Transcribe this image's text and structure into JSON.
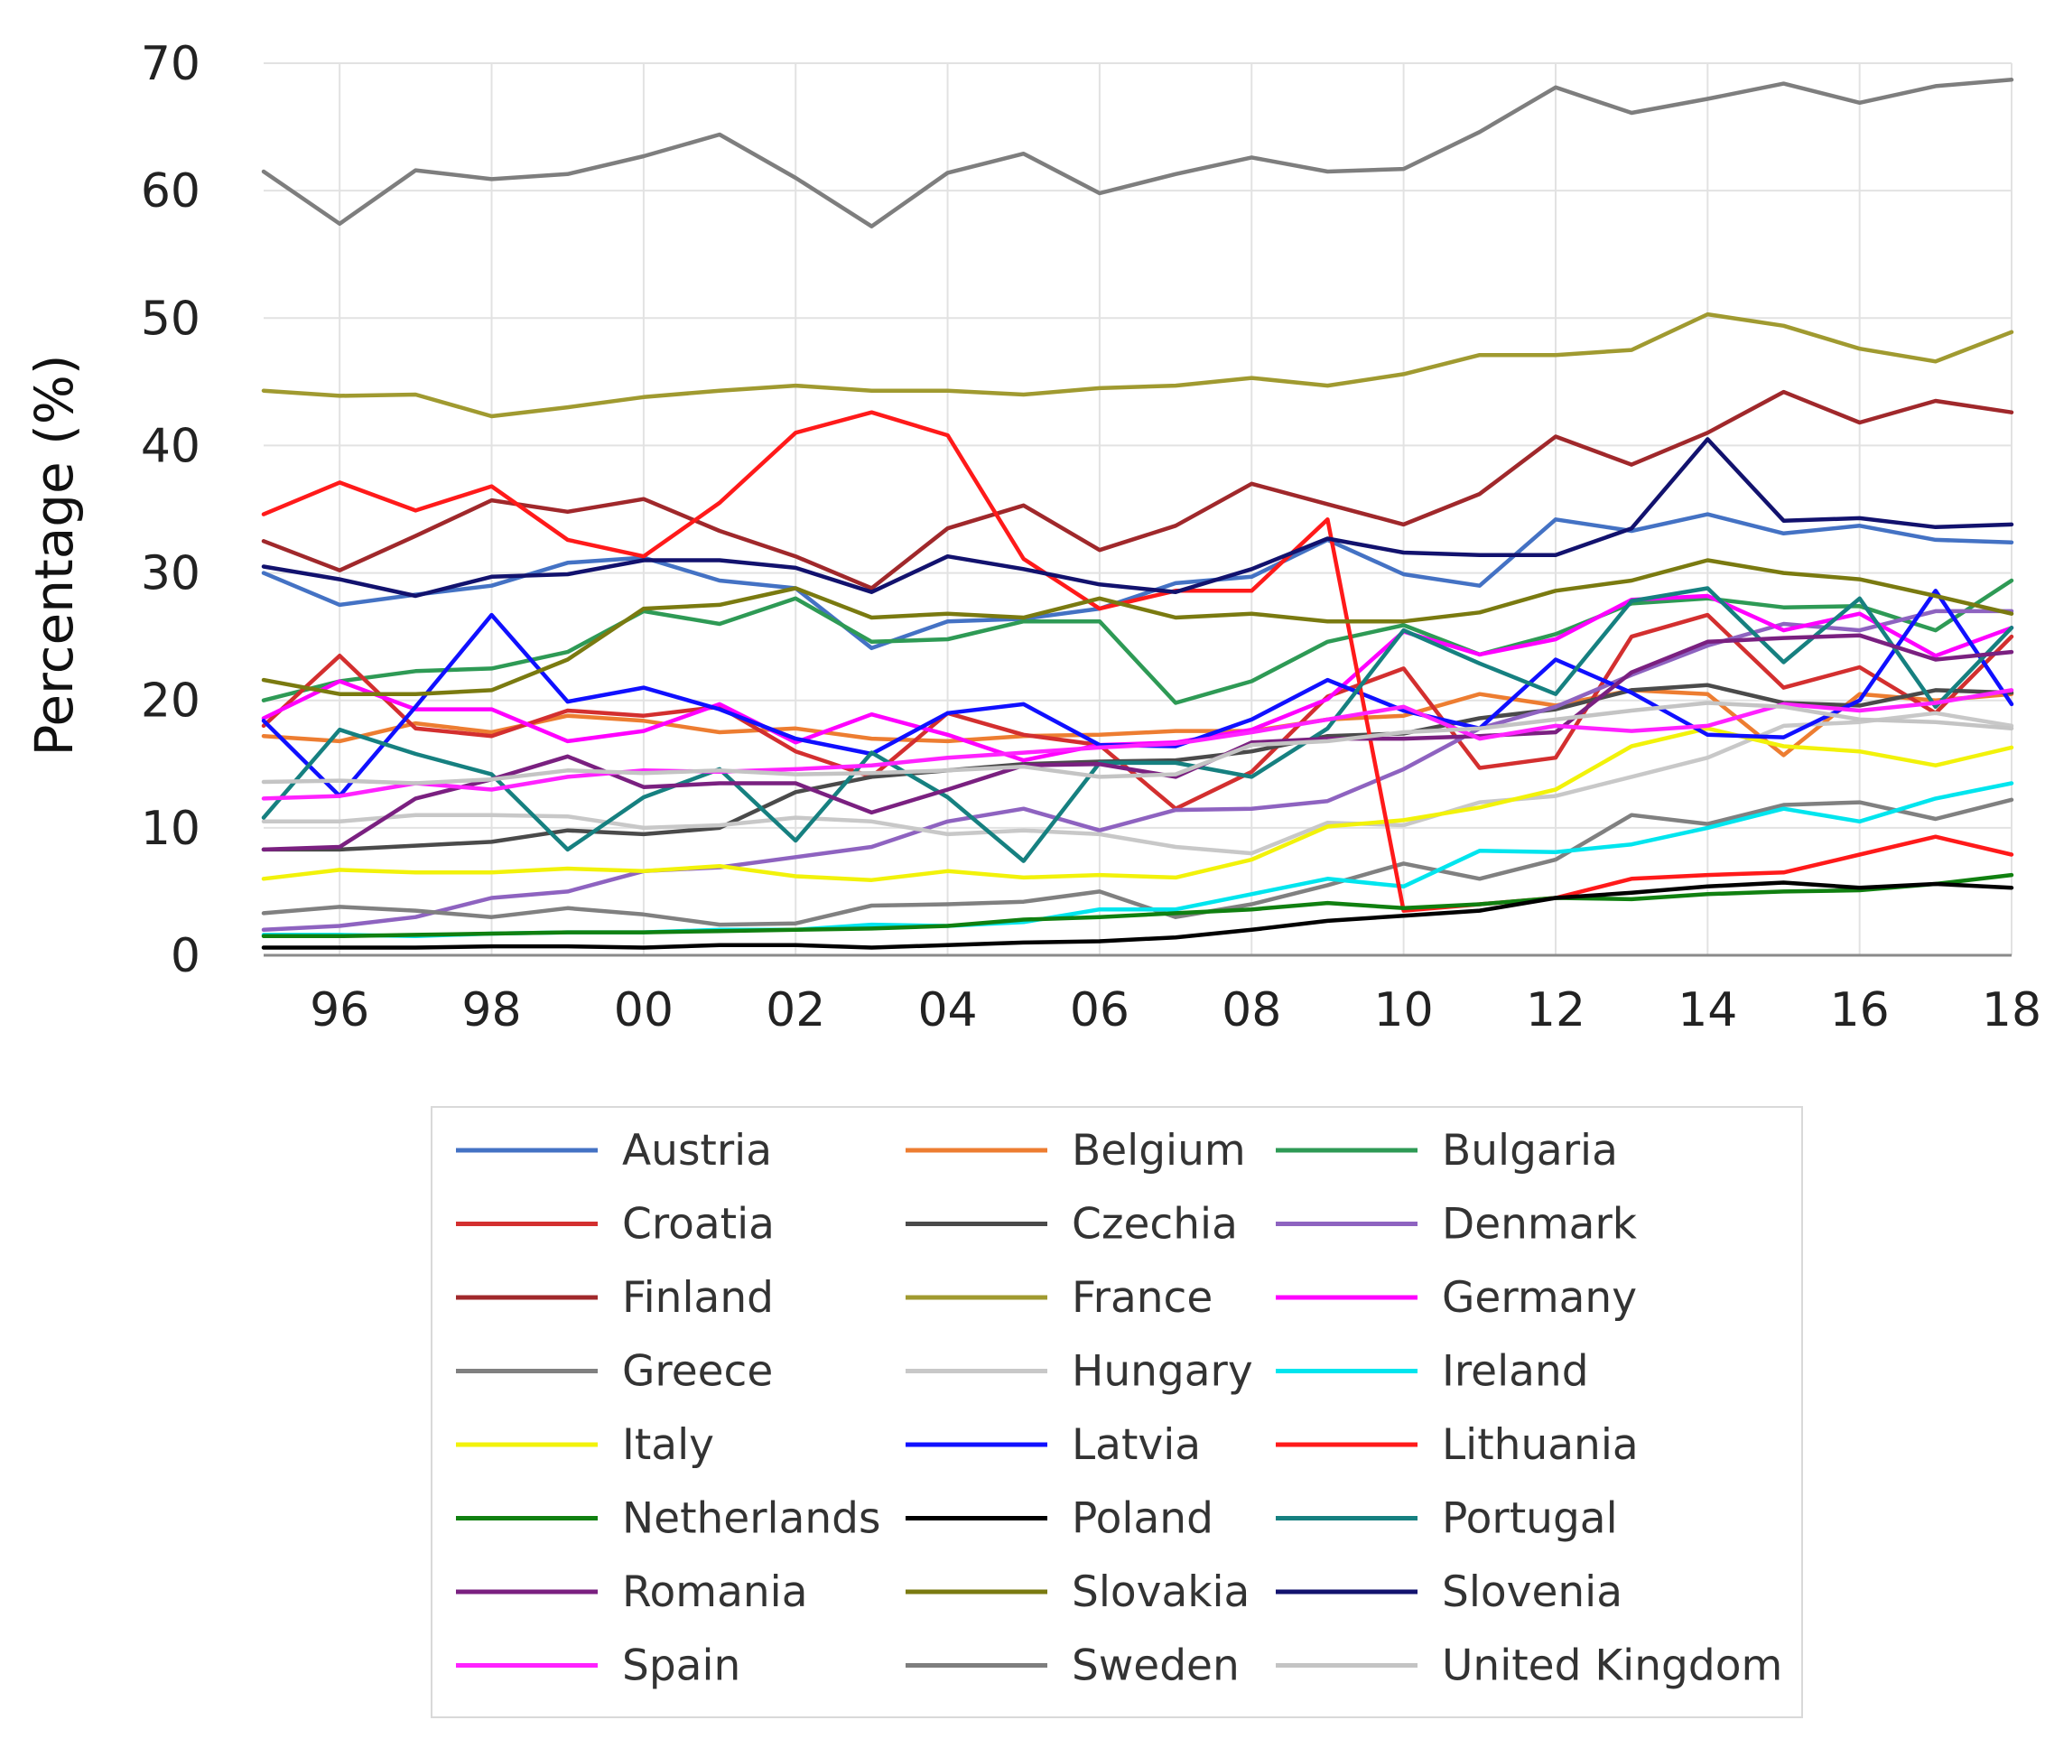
{
  "chart_data": {
    "type": "line",
    "title": "",
    "xlabel": "",
    "ylabel": "Percentage (%)",
    "x": [
      1995,
      1996,
      1997,
      1998,
      1999,
      2000,
      2001,
      2002,
      2003,
      2004,
      2005,
      2006,
      2007,
      2008,
      2009,
      2010,
      2011,
      2012,
      2013,
      2014,
      2015,
      2016,
      2017,
      2018
    ],
    "xticks": [
      {
        "value": 1996,
        "label": "96"
      },
      {
        "value": 1998,
        "label": "98"
      },
      {
        "value": 2000,
        "label": "00"
      },
      {
        "value": 2002,
        "label": "02"
      },
      {
        "value": 2004,
        "label": "04"
      },
      {
        "value": 2006,
        "label": "06"
      },
      {
        "value": 2008,
        "label": "08"
      },
      {
        "value": 2010,
        "label": "10"
      },
      {
        "value": 2012,
        "label": "12"
      },
      {
        "value": 2014,
        "label": "14"
      },
      {
        "value": 2016,
        "label": "16"
      },
      {
        "value": 2018,
        "label": "18"
      }
    ],
    "yticks": [
      0,
      10,
      20,
      30,
      40,
      50,
      60,
      70
    ],
    "xlim": [
      1995,
      2018
    ],
    "ylim": [
      0,
      70
    ],
    "grid": true,
    "legend_position": "bottom",
    "series": [
      {
        "name": "Austria",
        "color": "#4472c4",
        "values": [
          30,
          27.5,
          28.3,
          29,
          30.8,
          31.2,
          29.4,
          28.8,
          24.1,
          26.2,
          26.4,
          27.2,
          29.2,
          29.7,
          32.6,
          29.9,
          29,
          34.2,
          33.3,
          34.6,
          33.1,
          33.7,
          32.6,
          32.4
        ]
      },
      {
        "name": "Belgium",
        "color": "#ed7d31",
        "values": [
          17.2,
          16.8,
          18.2,
          17.5,
          18.8,
          18.4,
          17.5,
          17.8,
          17,
          16.8,
          17.2,
          17.3,
          17.6,
          17.6,
          18.5,
          18.8,
          20.5,
          19.6,
          20.8,
          20.5,
          15.7,
          20.5,
          20,
          20.5
        ]
      },
      {
        "name": "Bulgaria",
        "color": "#2e9a55",
        "values": [
          20,
          21.5,
          22.3,
          22.5,
          23.8,
          27,
          26,
          28,
          24.6,
          24.8,
          26.2,
          26.2,
          19.8,
          21.5,
          24.6,
          25.9,
          23.6,
          25.2,
          27.6,
          28,
          27.3,
          27.4,
          25.5,
          29.4
        ]
      },
      {
        "name": "Croatia",
        "color": "#d32f2f",
        "values": [
          18,
          23.5,
          17.8,
          17.2,
          19.2,
          18.8,
          19.5,
          16,
          14,
          19,
          17.3,
          16.5,
          11.5,
          14.4,
          20.3,
          22.5,
          14.7,
          15.5,
          25,
          26.7,
          21,
          22.6,
          19,
          25
        ]
      },
      {
        "name": "Czechia",
        "color": "#4a4a4a",
        "values": [
          8.3,
          8.3,
          8.6,
          8.9,
          9.8,
          9.5,
          10,
          12.8,
          14,
          14.5,
          15,
          15.2,
          15.3,
          16,
          17.2,
          17.4,
          18.6,
          19.3,
          20.8,
          21.2,
          19.8,
          19.6,
          20.8,
          20.6
        ]
      },
      {
        "name": "Denmark",
        "color": "#8e63c0",
        "values": [
          2,
          2.3,
          3,
          4.5,
          5,
          6.6,
          6.9,
          7.7,
          8.5,
          10.5,
          11.5,
          9.8,
          11.4,
          11.5,
          12.1,
          14.6,
          17.8,
          19.5,
          22,
          24.3,
          26,
          25.5,
          27,
          27
        ]
      },
      {
        "name": "Finland",
        "color": "#a0282b",
        "values": [
          32.5,
          30.2,
          32.9,
          35.7,
          34.8,
          35.8,
          33.3,
          31.3,
          28.8,
          33.5,
          35.3,
          31.8,
          33.7,
          37,
          35.4,
          33.8,
          36.2,
          40.7,
          38.5,
          41,
          44.2,
          41.8,
          43.5,
          42.6
        ]
      },
      {
        "name": "France",
        "color": "#a09a30",
        "values": [
          44.3,
          43.9,
          44,
          42.3,
          43,
          43.8,
          44.3,
          44.7,
          44.3,
          44.3,
          44,
          44.5,
          44.7,
          45.3,
          44.7,
          45.6,
          47.1,
          47.1,
          47.5,
          50.3,
          49.4,
          47.6,
          46.6,
          48.9
        ]
      },
      {
        "name": "Germany",
        "color": "#ff00ff",
        "values": [
          18.6,
          21.5,
          19.3,
          19.3,
          16.8,
          17.6,
          19.7,
          16.7,
          18.9,
          17.3,
          15.3,
          16.5,
          16.7,
          17.7,
          20.1,
          25.4,
          23.6,
          24.8,
          27.9,
          28.2,
          25.5,
          26.8,
          23.5,
          25.7
        ]
      },
      {
        "name": "Greece",
        "color": "#808080",
        "values": [
          3.3,
          3.8,
          3.5,
          3,
          3.7,
          3.2,
          2.4,
          2.5,
          3.9,
          4,
          4.2,
          5,
          3,
          4,
          5.5,
          7.2,
          6,
          7.5,
          11,
          10.3,
          11.8,
          12,
          10.7,
          12.2
        ]
      },
      {
        "name": "Hungary",
        "color": "#c8c8c8",
        "values": [
          10.5,
          10.5,
          11,
          11,
          10.9,
          10,
          10.2,
          10.8,
          10.5,
          9.5,
          9.8,
          9.5,
          8.5,
          8,
          10.4,
          10.2,
          12,
          12.5,
          14,
          15.5,
          18,
          18.3,
          19,
          18
        ]
      },
      {
        "name": "Ireland",
        "color": "#00e5ee",
        "values": [
          1.6,
          1.6,
          1.5,
          1.7,
          1.8,
          1.8,
          2,
          2,
          2.4,
          2.3,
          2.6,
          3.6,
          3.6,
          4.8,
          6,
          5.4,
          8.2,
          8.1,
          8.7,
          10,
          11.5,
          10.5,
          12.3,
          13.5
        ]
      },
      {
        "name": "Italy",
        "color": "#f2f20a",
        "values": [
          6,
          6.7,
          6.5,
          6.5,
          6.8,
          6.6,
          7,
          6.2,
          5.9,
          6.6,
          6.1,
          6.3,
          6.1,
          7.5,
          10.1,
          10.6,
          11.6,
          13,
          16.4,
          17.8,
          16.4,
          16,
          14.9,
          16.3
        ]
      },
      {
        "name": "Latvia",
        "color": "#1010ff",
        "values": [
          18.4,
          12.5,
          19.5,
          26.7,
          19.9,
          21,
          19.3,
          17,
          15.8,
          19,
          19.7,
          16.5,
          16.4,
          18.5,
          21.6,
          19.2,
          17.8,
          23.2,
          20.6,
          17.3,
          17.1,
          20,
          28.6,
          19.7
        ]
      },
      {
        "name": "Lithuania",
        "color": "#ff1a1a",
        "values": [
          34.6,
          37.1,
          34.9,
          36.8,
          32.6,
          31.3,
          35.5,
          41,
          42.6,
          40.8,
          31.1,
          27.2,
          28.6,
          28.6,
          34.2,
          3.5,
          4,
          4.5,
          6,
          6.3,
          6.5,
          7.9,
          9.3,
          7.9
        ]
      },
      {
        "name": "Netherlands",
        "color": "#108010",
        "values": [
          1.5,
          1.5,
          1.6,
          1.7,
          1.8,
          1.8,
          1.9,
          2,
          2.1,
          2.3,
          2.8,
          3,
          3.3,
          3.6,
          4.1,
          3.7,
          4,
          4.5,
          4.4,
          4.8,
          5,
          5.1,
          5.6,
          6.3
        ]
      },
      {
        "name": "Poland",
        "color": "#000000",
        "values": [
          0.6,
          0.6,
          0.6,
          0.7,
          0.7,
          0.6,
          0.8,
          0.8,
          0.6,
          0.8,
          1,
          1.1,
          1.4,
          2,
          2.7,
          3.1,
          3.5,
          4.5,
          4.9,
          5.4,
          5.7,
          5.3,
          5.6,
          5.3
        ]
      },
      {
        "name": "Portugal",
        "color": "#168080",
        "values": [
          10.8,
          17.7,
          15.8,
          14.2,
          8.3,
          12.4,
          14.6,
          9,
          15.9,
          12.4,
          7.4,
          15.1,
          15.1,
          14,
          17.8,
          25.5,
          22.9,
          20.5,
          27.8,
          28.8,
          23,
          28,
          19.5,
          25.7
        ]
      },
      {
        "name": "Romania",
        "color": "#7a2080",
        "values": [
          8.3,
          8.5,
          12.3,
          13.8,
          15.6,
          13.2,
          13.5,
          13.5,
          11.2,
          13,
          14.9,
          15,
          14,
          16.7,
          17,
          17,
          17.2,
          17.5,
          22.2,
          24.6,
          24.9,
          25.1,
          23.2,
          23.8
        ]
      },
      {
        "name": "Slovakia",
        "color": "#7a7a10",
        "values": [
          21.6,
          20.5,
          20.5,
          20.8,
          23.2,
          27.2,
          27.5,
          28.8,
          26.5,
          26.8,
          26.5,
          28,
          26.5,
          26.8,
          26.2,
          26.2,
          26.9,
          28.6,
          29.4,
          31,
          30,
          29.5,
          28.2,
          26.8
        ]
      },
      {
        "name": "Slovenia",
        "color": "#12126e",
        "values": [
          30.5,
          29.5,
          28.2,
          29.7,
          29.9,
          31,
          31,
          30.4,
          28.5,
          31.3,
          30.3,
          29.1,
          28.5,
          30.3,
          32.7,
          31.6,
          31.4,
          31.4,
          33.5,
          40.5,
          34.1,
          34.3,
          33.6,
          33.8
        ]
      },
      {
        "name": "Spain",
        "color": "#ff22ff",
        "values": [
          12.3,
          12.5,
          13.5,
          13,
          14,
          14.5,
          14.4,
          14.6,
          14.9,
          15.5,
          15.9,
          16.3,
          16.6,
          17.5,
          18.5,
          19.5,
          17,
          18,
          17.6,
          18,
          19.7,
          19.2,
          19.8,
          20.8
        ]
      },
      {
        "name": "Sweden",
        "color": "#7e7e7e",
        "values": [
          61.5,
          57.4,
          61.6,
          60.9,
          61.3,
          62.7,
          64.4,
          61,
          57.2,
          61.4,
          62.9,
          59.8,
          61.3,
          62.6,
          61.5,
          61.7,
          64.6,
          68.1,
          66.1,
          67.2,
          68.4,
          66.9,
          68.2,
          68.7
        ]
      },
      {
        "name": "United Kingdom",
        "color": "#c4c4c4",
        "values": [
          13.6,
          13.7,
          13.5,
          13.8,
          14.5,
          14.3,
          14.5,
          14.2,
          14.3,
          14.5,
          14.8,
          14,
          14.2,
          16.5,
          16.8,
          17.5,
          17.8,
          18.5,
          19.2,
          19.8,
          19.5,
          18.5,
          18.3,
          17.8
        ]
      }
    ]
  }
}
